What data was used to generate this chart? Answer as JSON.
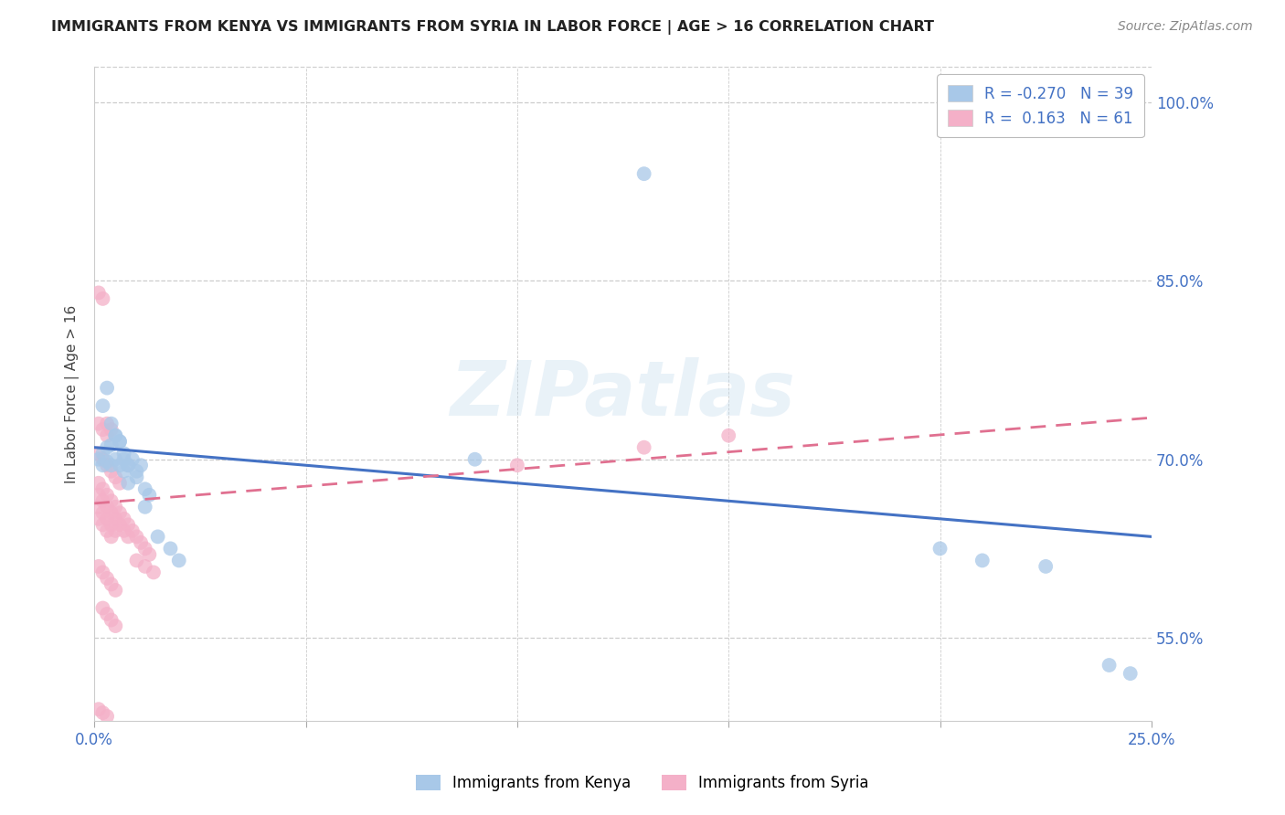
{
  "title": "IMMIGRANTS FROM KENYA VS IMMIGRANTS FROM SYRIA IN LABOR FORCE | AGE > 16 CORRELATION CHART",
  "source": "Source: ZipAtlas.com",
  "ylabel": "In Labor Force | Age > 16",
  "xlim": [
    0.0,
    0.25
  ],
  "ylim": [
    0.48,
    1.03
  ],
  "kenya_color": "#a8c8e8",
  "kenya_line_color": "#4472c4",
  "syria_color": "#f4b0c8",
  "syria_line_color": "#e07090",
  "kenya_R": -0.27,
  "kenya_N": 39,
  "syria_R": 0.163,
  "syria_N": 61,
  "kenya_line_x0": 0.0,
  "kenya_line_y0": 0.71,
  "kenya_line_x1": 0.25,
  "kenya_line_y1": 0.635,
  "syria_line_x0": 0.0,
  "syria_line_y0": 0.663,
  "syria_line_x1": 0.25,
  "syria_line_y1": 0.735,
  "kenya_x": [
    0.001,
    0.002,
    0.002,
    0.003,
    0.003,
    0.004,
    0.004,
    0.005,
    0.005,
    0.006,
    0.006,
    0.007,
    0.007,
    0.008,
    0.008,
    0.009,
    0.01,
    0.011,
    0.012,
    0.013,
    0.002,
    0.003,
    0.004,
    0.005,
    0.006,
    0.007,
    0.008,
    0.01,
    0.012,
    0.015,
    0.018,
    0.02,
    0.09,
    0.13,
    0.2,
    0.21,
    0.225,
    0.24,
    0.245
  ],
  "kenya_y": [
    0.7,
    0.705,
    0.695,
    0.71,
    0.698,
    0.712,
    0.695,
    0.72,
    0.7,
    0.715,
    0.695,
    0.7,
    0.69,
    0.695,
    0.68,
    0.7,
    0.69,
    0.695,
    0.675,
    0.67,
    0.745,
    0.76,
    0.73,
    0.72,
    0.715,
    0.705,
    0.695,
    0.685,
    0.66,
    0.635,
    0.625,
    0.615,
    0.7,
    0.94,
    0.625,
    0.615,
    0.61,
    0.527,
    0.52
  ],
  "syria_x": [
    0.001,
    0.001,
    0.001,
    0.001,
    0.002,
    0.002,
    0.002,
    0.002,
    0.003,
    0.003,
    0.003,
    0.003,
    0.004,
    0.004,
    0.004,
    0.004,
    0.005,
    0.005,
    0.005,
    0.006,
    0.006,
    0.007,
    0.007,
    0.008,
    0.008,
    0.009,
    0.01,
    0.011,
    0.012,
    0.013,
    0.001,
    0.002,
    0.003,
    0.004,
    0.005,
    0.006,
    0.001,
    0.002,
    0.003,
    0.001,
    0.002,
    0.003,
    0.004,
    0.001,
    0.002,
    0.003,
    0.004,
    0.005,
    0.002,
    0.003,
    0.004,
    0.005,
    0.01,
    0.012,
    0.014,
    0.1,
    0.13,
    0.15,
    0.001,
    0.002,
    0.003
  ],
  "syria_y": [
    0.68,
    0.67,
    0.66,
    0.65,
    0.675,
    0.665,
    0.655,
    0.645,
    0.67,
    0.66,
    0.65,
    0.64,
    0.665,
    0.655,
    0.645,
    0.635,
    0.66,
    0.65,
    0.64,
    0.655,
    0.645,
    0.65,
    0.64,
    0.645,
    0.635,
    0.64,
    0.635,
    0.63,
    0.625,
    0.62,
    0.705,
    0.7,
    0.695,
    0.69,
    0.685,
    0.68,
    0.73,
    0.725,
    0.72,
    0.84,
    0.835,
    0.73,
    0.725,
    0.61,
    0.605,
    0.6,
    0.595,
    0.59,
    0.575,
    0.57,
    0.565,
    0.56,
    0.615,
    0.61,
    0.605,
    0.695,
    0.71,
    0.72,
    0.49,
    0.487,
    0.484
  ],
  "watermark": "ZIPatlas",
  "background_color": "#ffffff",
  "grid_color": "#cccccc",
  "ytick_vals": [
    0.55,
    0.7,
    0.85,
    1.0
  ],
  "ytick_labels": [
    "55.0%",
    "70.0%",
    "85.0%",
    "100.0%"
  ],
  "xtick_vals": [
    0.0,
    0.25
  ],
  "xtick_labels": [
    "0.0%",
    "25.0%"
  ]
}
